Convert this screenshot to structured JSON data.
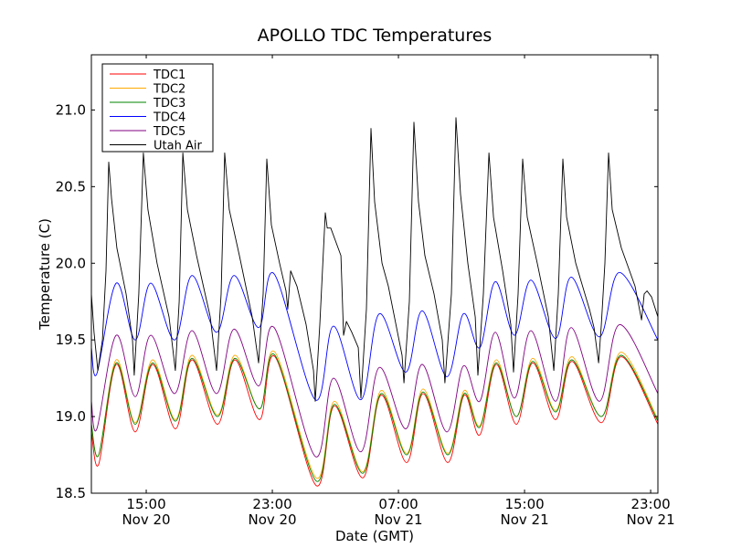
{
  "chart_data": {
    "type": "line",
    "title": "APOLLO TDC Temperatures",
    "xlabel": "Date (GMT)",
    "ylabel": "Temperature (C)",
    "x_units": "hours since Nov 20 00:00 GMT",
    "xlim": [
      11.52,
      47.46
    ],
    "ylim": [
      18.5,
      21.36
    ],
    "grid": false,
    "legend_position": "top-left",
    "xticks": [
      {
        "value": 15,
        "time": "15:00",
        "date": "Nov 20"
      },
      {
        "value": 23,
        "time": "23:00",
        "date": "Nov 20"
      },
      {
        "value": 31,
        "time": "07:00",
        "date": "Nov 21"
      },
      {
        "value": 39,
        "time": "15:00",
        "date": "Nov 21"
      },
      {
        "value": 47,
        "time": "23:00",
        "date": "Nov 21"
      }
    ],
    "yticks": [
      {
        "value": 18.5,
        "label": "18.5"
      },
      {
        "value": 19.0,
        "label": "19.0"
      },
      {
        "value": 19.5,
        "label": "19.5"
      },
      {
        "value": 20.0,
        "label": "20.0"
      },
      {
        "value": 20.5,
        "label": "20.5"
      },
      {
        "value": 21.0,
        "label": "21.0"
      }
    ],
    "series": [
      {
        "name": "TDC1",
        "color": "#ff0000",
        "smooth": true,
        "x": [
          11.52,
          11.99,
          13.09,
          14.3,
          15.41,
          16.86,
          17.9,
          19.52,
          20.62,
          22.19,
          23.17,
          25.78,
          26.94,
          28.74,
          29.9,
          31.52,
          32.57,
          34.13,
          35.17,
          36.16,
          37.2,
          38.48,
          39.52,
          40.97,
          42.01,
          43.87,
          45.14,
          47.46
        ],
        "y": [
          18.9,
          18.69,
          19.34,
          18.9,
          19.34,
          18.92,
          19.37,
          18.95,
          19.37,
          18.98,
          19.39,
          18.55,
          19.07,
          18.6,
          19.14,
          18.7,
          19.15,
          18.7,
          19.14,
          18.88,
          19.34,
          18.95,
          19.35,
          18.98,
          19.36,
          18.96,
          19.39,
          18.95
        ]
      },
      {
        "name": "TDC2",
        "color": "#ffaa00",
        "smooth": true,
        "x": [
          11.52,
          11.99,
          13.09,
          14.3,
          15.41,
          16.86,
          17.9,
          19.52,
          20.62,
          22.19,
          23.17,
          25.78,
          26.94,
          28.74,
          29.9,
          31.52,
          32.57,
          34.13,
          35.17,
          36.16,
          37.2,
          38.48,
          39.52,
          40.97,
          42.01,
          43.87,
          45.14,
          47.46
        ],
        "y": [
          18.95,
          18.75,
          19.37,
          18.96,
          19.37,
          18.98,
          19.4,
          19.01,
          19.4,
          19.05,
          19.42,
          18.6,
          19.1,
          18.64,
          19.17,
          18.76,
          19.18,
          18.76,
          19.17,
          18.94,
          19.37,
          19.0,
          19.38,
          19.04,
          19.39,
          19.0,
          19.42,
          18.98
        ]
      },
      {
        "name": "TDC3",
        "color": "#008000",
        "smooth": true,
        "x": [
          11.52,
          11.99,
          13.09,
          14.3,
          15.41,
          16.86,
          17.9,
          19.52,
          20.62,
          22.19,
          23.17,
          25.78,
          26.94,
          28.74,
          29.9,
          31.52,
          32.57,
          34.13,
          35.17,
          36.16,
          37.2,
          38.48,
          39.52,
          40.97,
          42.01,
          43.87,
          45.14,
          47.46
        ],
        "y": [
          18.95,
          18.75,
          19.35,
          18.95,
          19.35,
          18.97,
          19.38,
          19.0,
          19.38,
          19.05,
          19.4,
          18.58,
          19.08,
          18.63,
          19.15,
          18.75,
          19.16,
          18.75,
          19.15,
          18.93,
          19.35,
          19.0,
          19.36,
          19.03,
          19.37,
          19.0,
          19.4,
          18.97
        ]
      },
      {
        "name": "TDC4",
        "color": "#0000ff",
        "smooth": true,
        "x": [
          11.52,
          11.87,
          13.09,
          14.3,
          15.29,
          16.8,
          17.9,
          19.46,
          20.57,
          22.13,
          23.12,
          25.72,
          26.88,
          28.62,
          29.78,
          31.46,
          32.51,
          34.07,
          35.12,
          36.16,
          37.14,
          38.36,
          39.41,
          40.97,
          41.96,
          43.75,
          45.03,
          47.46
        ],
        "y": [
          19.45,
          19.28,
          19.87,
          19.5,
          19.87,
          19.5,
          19.92,
          19.55,
          19.92,
          19.58,
          19.93,
          19.11,
          19.59,
          19.11,
          19.67,
          19.29,
          19.69,
          19.26,
          19.67,
          19.45,
          19.88,
          19.53,
          19.89,
          19.51,
          19.91,
          19.52,
          19.94,
          19.5
        ]
      },
      {
        "name": "TDC5",
        "color": "#800080",
        "smooth": true,
        "x": [
          11.52,
          11.87,
          13.09,
          14.3,
          15.29,
          16.8,
          17.9,
          19.46,
          20.57,
          22.13,
          23.12,
          25.72,
          26.88,
          28.62,
          29.78,
          31.46,
          32.51,
          34.07,
          35.12,
          36.16,
          37.14,
          38.36,
          39.41,
          40.97,
          41.96,
          43.75,
          45.03,
          47.46
        ],
        "y": [
          19.1,
          18.92,
          19.53,
          19.13,
          19.53,
          19.15,
          19.56,
          19.15,
          19.57,
          19.2,
          19.58,
          18.74,
          19.25,
          18.77,
          19.32,
          18.92,
          19.34,
          18.9,
          19.33,
          19.1,
          19.55,
          19.12,
          19.56,
          19.1,
          19.58,
          19.1,
          19.6,
          19.15
        ]
      },
      {
        "name": "Utah Air",
        "color": "#000000",
        "smooth": false,
        "x": [
          11.52,
          11.69,
          11.93,
          12.22,
          12.45,
          12.62,
          12.8,
          13.14,
          13.72,
          14.13,
          14.24,
          14.53,
          14.82,
          15.11,
          15.69,
          16.45,
          16.85,
          17.09,
          17.32,
          17.61,
          18.19,
          19.06,
          19.46,
          19.75,
          19.98,
          20.27,
          20.91,
          21.72,
          22.13,
          22.42,
          22.65,
          22.94,
          23.46,
          23.87,
          23.98,
          24.16,
          24.56,
          25.14,
          25.61,
          25.72,
          26.01,
          26.36,
          26.48,
          26.71,
          27.35,
          27.52,
          27.7,
          28.04,
          28.45,
          28.62,
          28.97,
          29.26,
          29.49,
          29.96,
          30.36,
          30.94,
          31.23,
          31.35,
          31.69,
          31.98,
          32.27,
          32.68,
          33.26,
          33.78,
          33.95,
          34.36,
          34.65,
          34.94,
          35.4,
          35.87,
          36.04,
          36.39,
          36.74,
          37.03,
          37.61,
          38.13,
          38.3,
          38.59,
          38.88,
          39.17,
          39.81,
          40.51,
          40.86,
          41.14,
          41.43,
          41.67,
          42.25,
          43.12,
          43.41,
          43.7,
          43.87,
          44.1,
          44.33,
          44.56,
          45.14,
          46.01,
          46.42,
          46.59,
          46.77,
          47.06,
          47.46
        ],
        "y": [
          19.8,
          19.55,
          19.3,
          19.5,
          19.95,
          20.66,
          20.42,
          20.1,
          19.8,
          19.5,
          19.27,
          19.8,
          20.72,
          20.35,
          20.0,
          19.65,
          19.3,
          19.75,
          20.72,
          20.35,
          20.05,
          19.65,
          19.3,
          19.8,
          20.72,
          20.35,
          20.05,
          19.65,
          19.35,
          19.8,
          20.68,
          20.25,
          20.0,
          19.82,
          19.7,
          19.95,
          19.85,
          19.6,
          19.3,
          19.1,
          19.6,
          20.33,
          20.23,
          20.23,
          20.05,
          19.53,
          19.62,
          19.55,
          19.45,
          19.12,
          19.7,
          20.88,
          20.4,
          20.0,
          19.85,
          19.55,
          19.4,
          19.22,
          19.75,
          20.92,
          20.4,
          20.05,
          19.8,
          19.5,
          19.22,
          19.8,
          20.95,
          20.45,
          20.0,
          19.65,
          19.27,
          19.8,
          20.72,
          20.3,
          19.95,
          19.6,
          19.29,
          19.8,
          20.68,
          20.3,
          20.0,
          19.65,
          19.3,
          19.8,
          20.68,
          20.3,
          20.0,
          19.7,
          19.58,
          19.35,
          19.6,
          20.0,
          20.72,
          20.35,
          20.1,
          19.85,
          19.63,
          19.8,
          19.82,
          19.78,
          19.65
        ]
      }
    ]
  }
}
